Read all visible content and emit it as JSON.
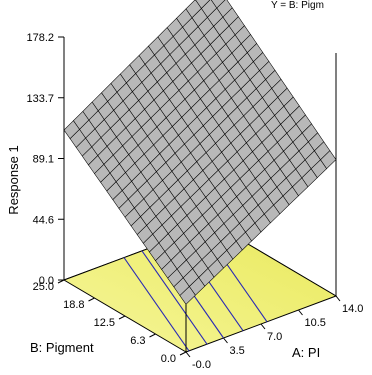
{
  "chart_data": {
    "type": "surface3d",
    "corner_label": "Y = B: Pigm",
    "zlabel": "Response 1",
    "xlabel": "A: PI",
    "ylabel": "B: Pigment",
    "z_ticks": [
      "0.0",
      "44.6",
      "89.1",
      "133.7",
      "178.2"
    ],
    "x_ticks": [
      "-0.0",
      "3.5",
      "7.0",
      "10.5",
      "14.0"
    ],
    "y_ticks": [
      "0.0",
      "6.3",
      "12.5",
      "18.8",
      "25.0"
    ],
    "xlim": [
      0,
      14
    ],
    "ylim": [
      0,
      25
    ],
    "zlim": [
      0,
      178.2
    ],
    "surface": {
      "z_at_x0_y0": 35,
      "z_at_x14_y0": 100,
      "z_at_x0_y25": 110,
      "z_at_x14_y25": 178.2
    },
    "colors": {
      "surface_fill": "#b8b8b8",
      "surface_grid": "#000000",
      "floor_fill": "#f2f27a",
      "contour": "#2a2ab5"
    }
  }
}
